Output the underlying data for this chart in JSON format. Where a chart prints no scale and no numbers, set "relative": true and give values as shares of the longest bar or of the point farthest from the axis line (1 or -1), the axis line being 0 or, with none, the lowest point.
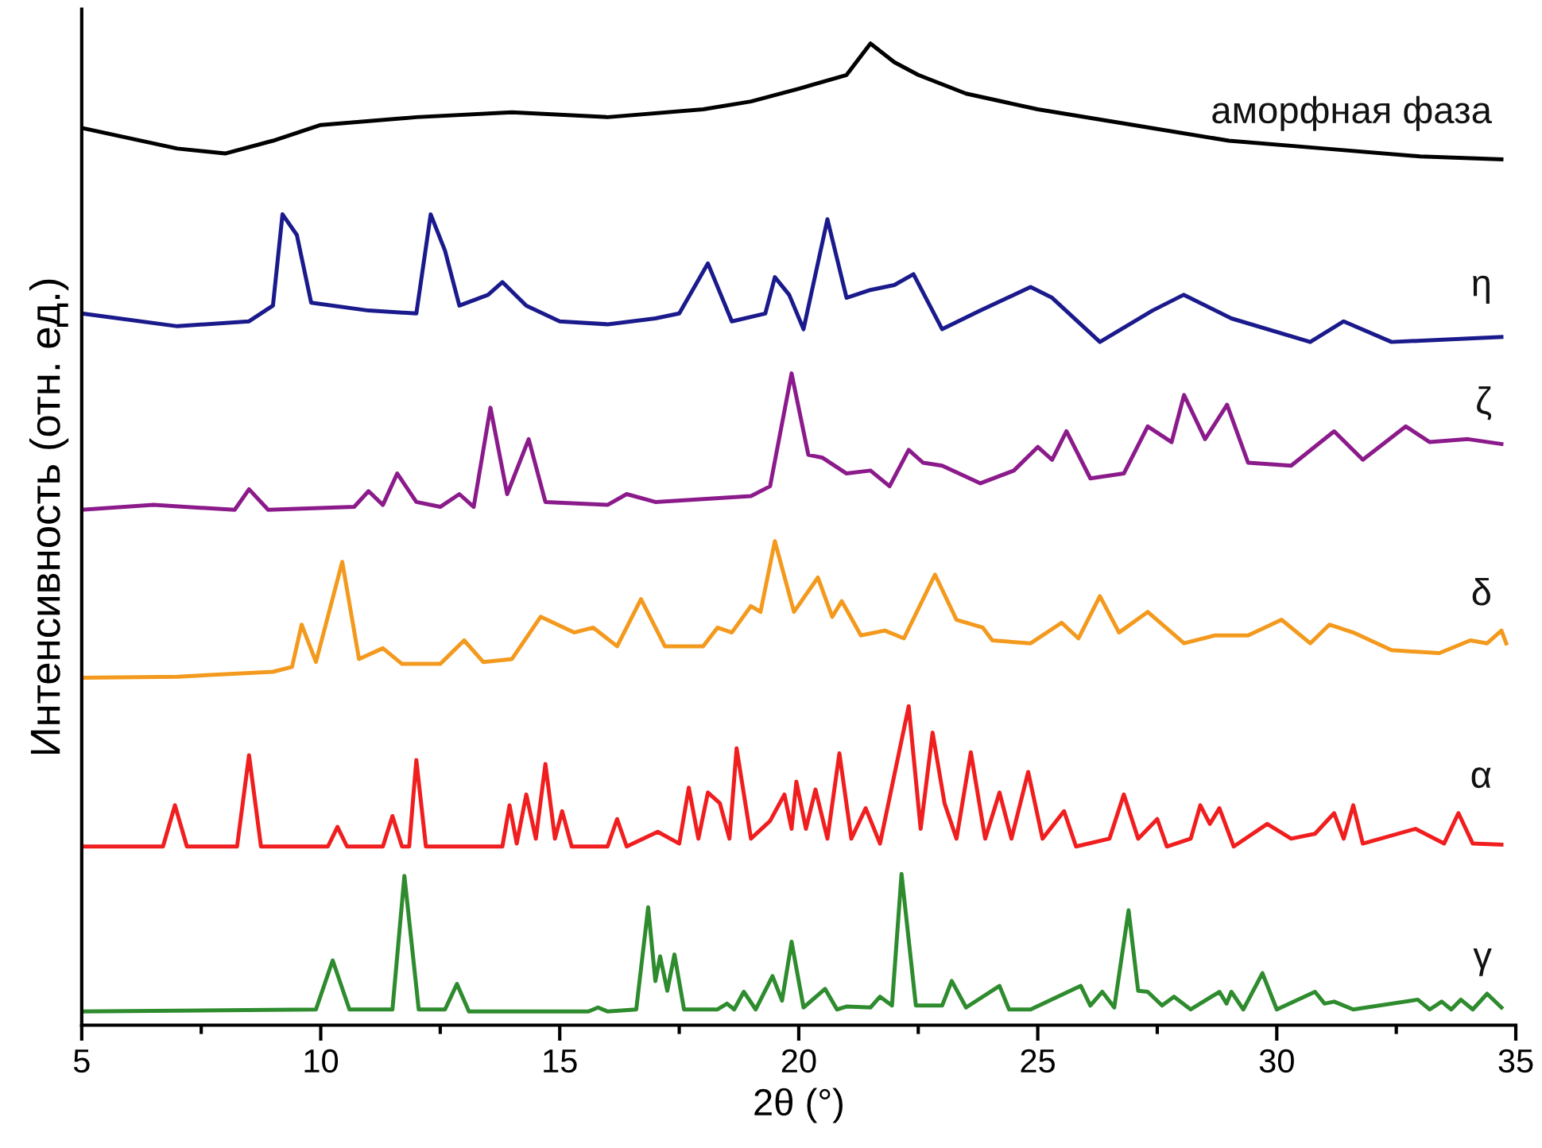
{
  "chart_data": {
    "type": "line",
    "relative": true,
    "xlabel": "2θ (°)",
    "ylabel": "Интенсивность (отн. ед.)",
    "xlim": [
      5,
      35
    ],
    "xticks": [
      5,
      {
        "value": 7.5,
        "label": null
      },
      10,
      {
        "value": 12.5,
        "label": null
      },
      15,
      {
        "value": 17.5,
        "label": null
      },
      20,
      {
        "value": 22.5,
        "label": null
      },
      25,
      {
        "value": 27.5,
        "label": null
      },
      30,
      {
        "value": 32.5,
        "label": null
      },
      35
    ],
    "tick_labels": "x",
    "grid": false,
    "legend": false,
    "line_style": "solid",
    "marker": "none",
    "series": [
      {
        "name": "аморфная фаза",
        "color": "#000000",
        "x": [
          5,
          7,
          8,
          9,
          10,
          12,
          14,
          16,
          18,
          19,
          20,
          21,
          21.5,
          22,
          22.5,
          23.5,
          25,
          27,
          29,
          31,
          33,
          34.7
        ],
        "values": [
          0.914,
          0.893,
          0.888,
          0.901,
          0.917,
          0.925,
          0.93,
          0.925,
          0.933,
          0.941,
          0.954,
          0.968,
          1.0,
          0.981,
          0.968,
          0.949,
          0.933,
          0.917,
          0.901,
          0.893,
          0.885,
          0.882
        ]
      },
      {
        "name": "η",
        "color": "#1a1a8c",
        "x": [
          5,
          7,
          8.5,
          9,
          9.2,
          9.5,
          9.8,
          11,
          12,
          12.3,
          12.6,
          12.9,
          13.5,
          13.8,
          14.3,
          15,
          16,
          17,
          17.5,
          18.1,
          18.6,
          19.3,
          19.5,
          19.8,
          20.1,
          20.6,
          21,
          21.5,
          22,
          22.4,
          23,
          23.8,
          24.85,
          25.3,
          26.3,
          27.4,
          28.05,
          29.05,
          30.7,
          31.4,
          32.4,
          34.7
        ],
        "values": [
          0.725,
          0.712,
          0.717,
          0.733,
          0.826,
          0.805,
          0.736,
          0.728,
          0.725,
          0.826,
          0.789,
          0.733,
          0.744,
          0.757,
          0.733,
          0.717,
          0.714,
          0.72,
          0.725,
          0.776,
          0.717,
          0.725,
          0.762,
          0.744,
          0.709,
          0.821,
          0.741,
          0.749,
          0.754,
          0.765,
          0.709,
          0.728,
          0.752,
          0.741,
          0.696,
          0.728,
          0.744,
          0.72,
          0.696,
          0.717,
          0.696,
          0.701
        ]
      },
      {
        "name": "ζ",
        "color": "#8b1a8b",
        "x": [
          5,
          6.5,
          8.2,
          8.5,
          8.9,
          10.7,
          11.0,
          11.3,
          11.6,
          12.0,
          12.5,
          12.9,
          13.2,
          13.55,
          13.9,
          14.35,
          14.7,
          16.0,
          16.4,
          17.0,
          18.0,
          19.0,
          19.4,
          19.85,
          20.2,
          20.5,
          21.0,
          21.5,
          21.9,
          22.3,
          22.6,
          23.0,
          23.8,
          24.5,
          25.0,
          25.3,
          25.6,
          26.1,
          26.8,
          27.3,
          27.8,
          28.06,
          28.5,
          28.96,
          29.4,
          30.3,
          31.2,
          31.8,
          32.7,
          33.2,
          34.0,
          34.7
        ],
        "values": [
          0.525,
          0.53,
          0.525,
          0.546,
          0.525,
          0.528,
          0.544,
          0.53,
          0.562,
          0.533,
          0.528,
          0.541,
          0.528,
          0.629,
          0.541,
          0.597,
          0.533,
          0.53,
          0.541,
          0.533,
          0.536,
          0.539,
          0.549,
          0.664,
          0.581,
          0.578,
          0.562,
          0.565,
          0.549,
          0.586,
          0.573,
          0.57,
          0.552,
          0.565,
          0.589,
          0.576,
          0.605,
          0.557,
          0.562,
          0.61,
          0.594,
          0.642,
          0.597,
          0.632,
          0.573,
          0.57,
          0.605,
          0.576,
          0.61,
          0.594,
          0.597,
          0.592
        ]
      },
      {
        "name": "δ",
        "color": "#f39a1e",
        "x": [
          5,
          7,
          9,
          9.4,
          9.6,
          9.9,
          10.45,
          10.8,
          11.3,
          11.7,
          12.5,
          13.0,
          13.4,
          14.0,
          14.6,
          15.3,
          15.7,
          16.2,
          16.7,
          17.2,
          18.0,
          18.3,
          18.6,
          19.0,
          19.2,
          19.5,
          19.9,
          20.4,
          20.7,
          20.9,
          21.3,
          21.8,
          22.2,
          22.85,
          23.3,
          23.85,
          24.05,
          24.85,
          25.5,
          25.85,
          26.3,
          26.7,
          27.3,
          28.06,
          28.7,
          29.4,
          30.1,
          30.7,
          31.1,
          31.6,
          32.4,
          33.4,
          34.05,
          34.4,
          34.7,
          34.8
        ],
        "values": [
          0.354,
          0.355,
          0.36,
          0.365,
          0.408,
          0.37,
          0.472,
          0.373,
          0.384,
          0.368,
          0.368,
          0.392,
          0.37,
          0.373,
          0.416,
          0.4,
          0.405,
          0.386,
          0.434,
          0.386,
          0.386,
          0.405,
          0.4,
          0.427,
          0.421,
          0.493,
          0.421,
          0.456,
          0.416,
          0.432,
          0.397,
          0.402,
          0.394,
          0.459,
          0.413,
          0.405,
          0.392,
          0.389,
          0.41,
          0.394,
          0.437,
          0.4,
          0.421,
          0.389,
          0.397,
          0.397,
          0.413,
          0.389,
          0.408,
          0.4,
          0.382,
          0.379,
          0.392,
          0.389,
          0.402,
          0.389
        ]
      },
      {
        "name": "α",
        "color": "#f01e1e",
        "x": [
          5,
          6.7,
          6.95,
          7.2,
          8.25,
          8.5,
          8.75,
          10.15,
          10.35,
          10.55,
          11.3,
          11.5,
          11.7,
          11.85,
          12.0,
          12.2,
          13.8,
          13.95,
          14.1,
          14.3,
          14.5,
          14.7,
          14.9,
          15.05,
          15.25,
          16.0,
          16.2,
          16.4,
          17.05,
          17.5,
          17.7,
          17.9,
          18.1,
          18.35,
          18.55,
          18.7,
          19.0,
          19.4,
          19.7,
          19.85,
          19.95,
          20.15,
          20.35,
          20.6,
          20.85,
          21.1,
          21.4,
          21.7,
          22.3,
          22.55,
          22.8,
          23.05,
          23.3,
          23.6,
          23.9,
          24.2,
          24.45,
          24.8,
          25.1,
          25.55,
          25.8,
          26.5,
          26.8,
          27.1,
          27.5,
          27.7,
          28.2,
          28.4,
          28.6,
          28.8,
          29.1,
          29.8,
          30.3,
          30.8,
          31.2,
          31.4,
          31.6,
          31.8,
          32.9,
          33.5,
          33.8,
          34.1,
          34.7
        ],
        "values": [
          0.182,
          0.182,
          0.224,
          0.182,
          0.182,
          0.275,
          0.182,
          0.182,
          0.202,
          0.182,
          0.182,
          0.213,
          0.182,
          0.182,
          0.27,
          0.182,
          0.182,
          0.224,
          0.185,
          0.235,
          0.19,
          0.266,
          0.19,
          0.218,
          0.182,
          0.182,
          0.21,
          0.182,
          0.197,
          0.185,
          0.242,
          0.19,
          0.237,
          0.226,
          0.19,
          0.282,
          0.19,
          0.208,
          0.235,
          0.2,
          0.248,
          0.2,
          0.24,
          0.19,
          0.277,
          0.19,
          0.221,
          0.185,
          0.325,
          0.2,
          0.298,
          0.226,
          0.19,
          0.278,
          0.19,
          0.237,
          0.19,
          0.258,
          0.19,
          0.218,
          0.182,
          0.19,
          0.235,
          0.19,
          0.21,
          0.182,
          0.19,
          0.224,
          0.205,
          0.221,
          0.182,
          0.205,
          0.19,
          0.195,
          0.216,
          0.19,
          0.224,
          0.185,
          0.2,
          0.185,
          0.216,
          0.185,
          0.184
        ]
      },
      {
        "name": "γ",
        "color": "#2e8b2e",
        "x": [
          5,
          9.9,
          10.25,
          10.6,
          11.5,
          11.75,
          12.05,
          12.6,
          12.85,
          13.1,
          15.6,
          15.8,
          16.0,
          16.6,
          16.85,
          17.0,
          17.1,
          17.25,
          17.4,
          17.6,
          18.3,
          18.5,
          18.65,
          18.85,
          19.1,
          19.45,
          19.65,
          19.85,
          20.1,
          20.55,
          20.8,
          21.0,
          21.5,
          21.7,
          21.95,
          22.15,
          22.45,
          23.0,
          23.2,
          23.5,
          24.2,
          24.4,
          24.85,
          25.9,
          26.1,
          26.35,
          26.6,
          26.9,
          27.1,
          27.3,
          27.6,
          27.85,
          28.2,
          28.8,
          28.95,
          29.05,
          29.3,
          29.7,
          30.0,
          30.8,
          31.0,
          31.2,
          31.6,
          32.95,
          33.2,
          33.45,
          33.65,
          33.85,
          34.1,
          34.4,
          34.7
        ],
        "values": [
          0.014,
          0.016,
          0.066,
          0.016,
          0.016,
          0.152,
          0.016,
          0.016,
          0.042,
          0.014,
          0.014,
          0.018,
          0.014,
          0.016,
          0.12,
          0.045,
          0.07,
          0.035,
          0.072,
          0.016,
          0.016,
          0.022,
          0.016,
          0.034,
          0.016,
          0.05,
          0.025,
          0.085,
          0.018,
          0.037,
          0.016,
          0.019,
          0.018,
          0.029,
          0.02,
          0.154,
          0.02,
          0.02,
          0.045,
          0.018,
          0.04,
          0.016,
          0.016,
          0.04,
          0.02,
          0.034,
          0.018,
          0.117,
          0.035,
          0.034,
          0.02,
          0.029,
          0.016,
          0.034,
          0.022,
          0.034,
          0.016,
          0.053,
          0.016,
          0.034,
          0.022,
          0.024,
          0.016,
          0.026,
          0.016,
          0.024,
          0.016,
          0.026,
          0.016,
          0.032,
          0.018
        ]
      }
    ]
  }
}
